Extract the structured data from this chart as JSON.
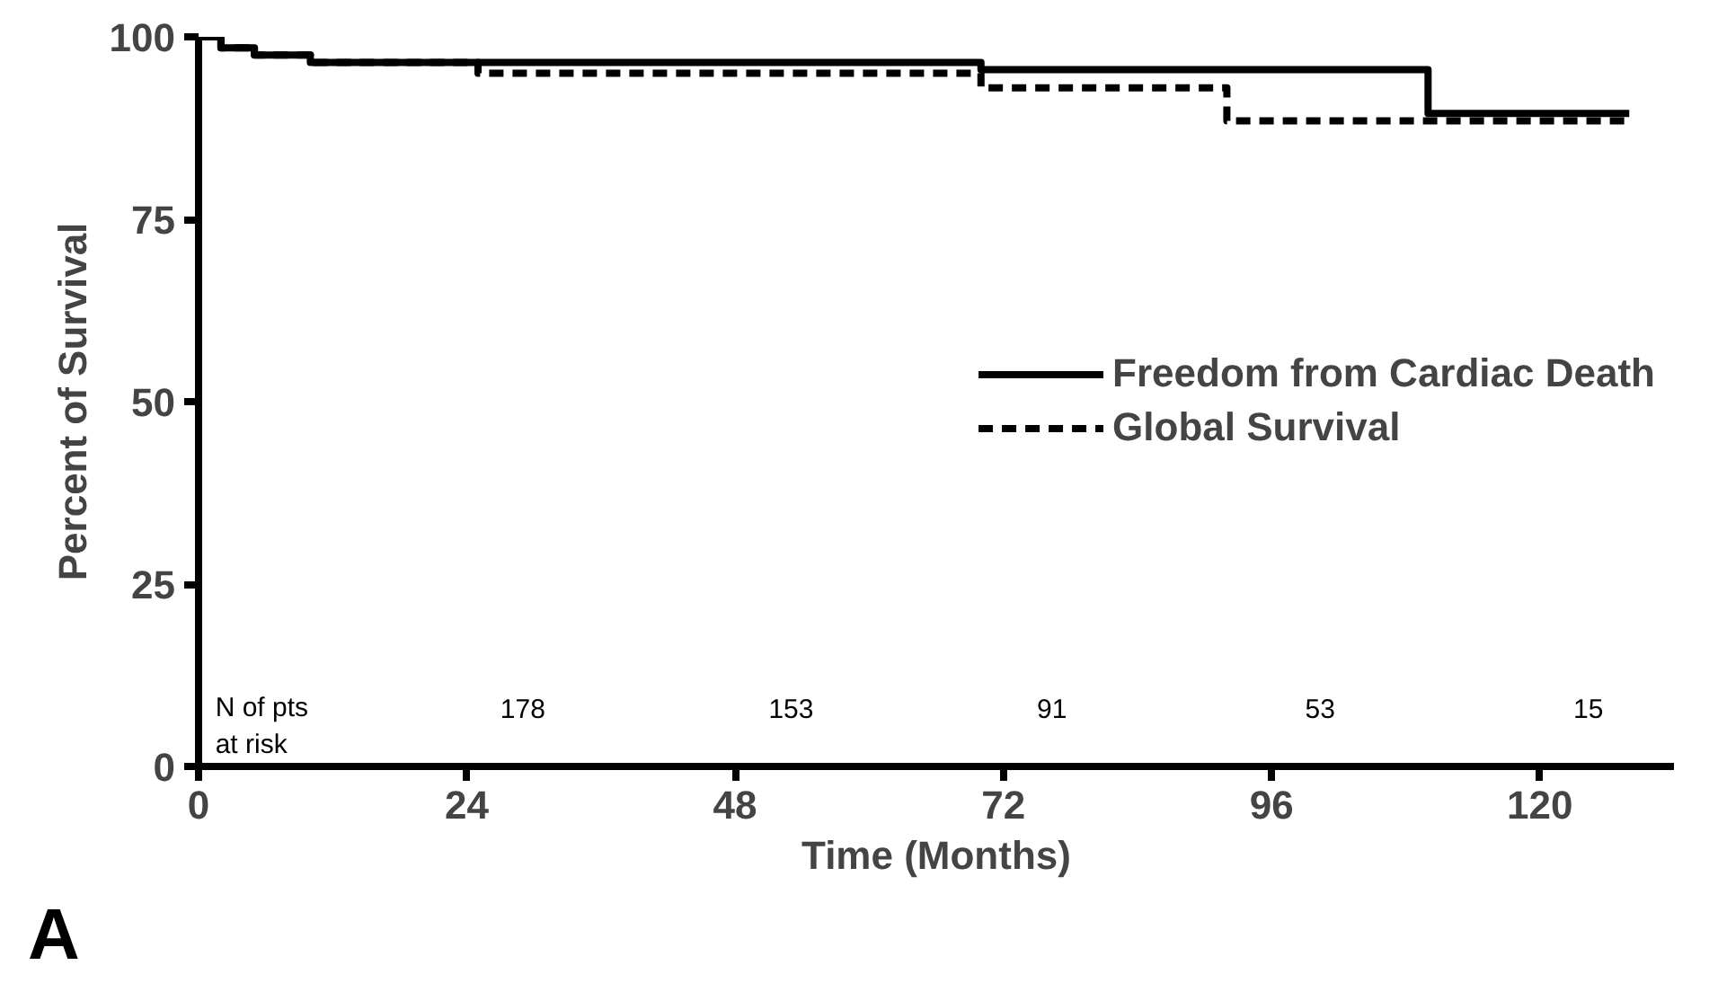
{
  "chart_data": {
    "type": "step",
    "xlabel": "Time (Months)",
    "ylabel": "Percent of Survival",
    "xlim": [
      0,
      132
    ],
    "ylim": [
      0,
      100
    ],
    "xticks": [
      0,
      24,
      48,
      72,
      96,
      120
    ],
    "yticks": [
      0,
      25,
      50,
      75,
      100
    ],
    "grid": false,
    "legend": "right",
    "marker": "none",
    "series": [
      {
        "name": "Freedom from Cardiac Death",
        "color": "#000000",
        "line_style": "solid",
        "x": [
          0,
          2,
          5,
          10,
          70,
          110,
          128
        ],
        "values": [
          100,
          98.5,
          97.5,
          96.5,
          95.5,
          89.5,
          89.5
        ]
      },
      {
        "name": "Global Survival",
        "color": "#000000",
        "line_style": "dashed",
        "x": [
          0,
          2,
          5,
          10,
          25,
          70,
          92,
          128
        ],
        "values": [
          100,
          98.5,
          97.5,
          96.5,
          95,
          93,
          88.5,
          88.5
        ]
      }
    ],
    "annotations": [
      "N of pts",
      "at risk",
      "178",
      "153",
      "91",
      "53",
      "15",
      "A"
    ]
  }
}
